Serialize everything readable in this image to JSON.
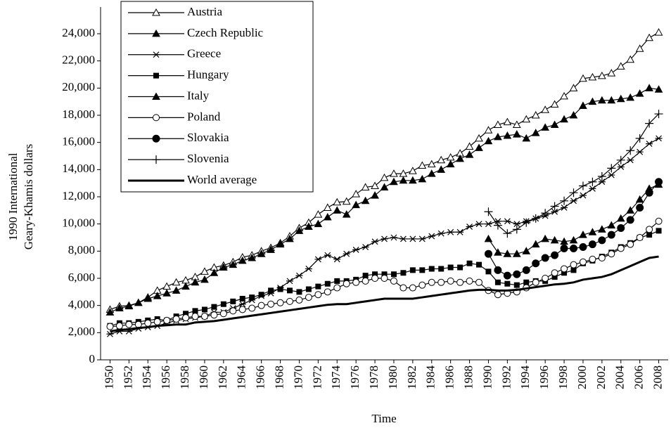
{
  "chart_data": {
    "type": "line",
    "x_label": "Time",
    "y_label": [
      "1990 International",
      "Geary-Khamis dollars"
    ],
    "x": [
      1950,
      1951,
      1952,
      1953,
      1954,
      1955,
      1956,
      1957,
      1958,
      1959,
      1960,
      1961,
      1962,
      1963,
      1964,
      1965,
      1966,
      1967,
      1968,
      1969,
      1970,
      1971,
      1972,
      1973,
      1974,
      1975,
      1976,
      1977,
      1978,
      1979,
      1980,
      1981,
      1982,
      1983,
      1984,
      1985,
      1986,
      1987,
      1988,
      1989,
      1990,
      1991,
      1992,
      1993,
      1994,
      1995,
      1996,
      1997,
      1998,
      1999,
      2000,
      2001,
      2002,
      2003,
      2004,
      2005,
      2006,
      2007,
      2008
    ],
    "xlim": [
      1949,
      2009
    ],
    "xticks": [
      1950,
      1952,
      1954,
      1956,
      1958,
      1960,
      1962,
      1964,
      1966,
      1968,
      1970,
      1972,
      1974,
      1976,
      1978,
      1980,
      1982,
      1984,
      1986,
      1988,
      1990,
      1992,
      1994,
      1996,
      1998,
      2000,
      2002,
      2004,
      2006,
      2008
    ],
    "ylim": [
      0,
      24000
    ],
    "yticks": [
      0,
      {
        "value": 2000,
        "label": "2,000"
      },
      {
        "value": 4000,
        "label": "4,000"
      },
      {
        "value": 6000,
        "label": "6,000"
      },
      {
        "value": 8000,
        "label": "8,000"
      },
      {
        "value": 10000,
        "label": "10,000"
      },
      {
        "value": 12000,
        "label": "12,000"
      },
      {
        "value": 14000,
        "label": "14,000"
      },
      {
        "value": 16000,
        "label": "16,000"
      },
      {
        "value": 18000,
        "label": "18,000"
      },
      {
        "value": 20000,
        "label": "20,000"
      },
      {
        "value": 22000,
        "label": "22,000"
      },
      {
        "value": 24000,
        "label": "24,000"
      }
    ],
    "legend": "upper left",
    "series": [
      {
        "name": "Austria",
        "color": "#000000",
        "marker": "triangle-open",
        "values": [
          3700,
          3950,
          4000,
          4200,
          4600,
          5100,
          5400,
          5700,
          5850,
          6100,
          6500,
          6800,
          6950,
          7200,
          7550,
          7700,
          8000,
          8250,
          8600,
          9100,
          9700,
          10100,
          10700,
          11200,
          11600,
          11650,
          12200,
          12700,
          12800,
          13400,
          13700,
          13700,
          13900,
          14300,
          14400,
          14700,
          14900,
          15200,
          15700,
          16300,
          16900,
          17300,
          17500,
          17300,
          17700,
          18000,
          18400,
          18800,
          19400,
          20000,
          20700,
          20800,
          20900,
          21100,
          21600,
          22100,
          22900,
          23700,
          24100
        ]
      },
      {
        "name": "Czech Republic",
        "color": "#000000",
        "marker": "triangle-filled",
        "values": [
          null,
          null,
          null,
          null,
          null,
          null,
          null,
          null,
          null,
          null,
          null,
          null,
          null,
          null,
          null,
          null,
          null,
          null,
          null,
          null,
          null,
          null,
          null,
          null,
          null,
          null,
          null,
          null,
          null,
          null,
          null,
          null,
          null,
          null,
          null,
          null,
          null,
          null,
          null,
          null,
          8900,
          7900,
          7800,
          7800,
          8000,
          8500,
          8900,
          8800,
          8700,
          8800,
          9200,
          9400,
          9600,
          9900,
          10400,
          11000,
          11800,
          12600,
          12900
        ]
      },
      {
        "name": "Greece",
        "color": "#000000",
        "marker": "asterisk",
        "values": [
          1900,
          2100,
          2100,
          2300,
          2400,
          2500,
          2700,
          2900,
          3000,
          3100,
          3200,
          3500,
          3500,
          3800,
          4100,
          4400,
          4700,
          4900,
          5300,
          5800,
          6200,
          6700,
          7400,
          7700,
          7400,
          7800,
          8100,
          8300,
          8700,
          8900,
          9000,
          8900,
          8900,
          8900,
          9100,
          9300,
          9400,
          9400,
          9800,
          10000,
          10000,
          10200,
          10200,
          10000,
          10200,
          10400,
          10600,
          10900,
          11200,
          11700,
          12100,
          12600,
          13100,
          13600,
          14200,
          14700,
          15300,
          15900,
          16300
        ]
      },
      {
        "name": "Hungary",
        "color": "#000000",
        "marker": "square",
        "values": [
          2500,
          2700,
          2700,
          2800,
          2900,
          3000,
          2900,
          3200,
          3400,
          3600,
          3700,
          3900,
          4100,
          4300,
          4500,
          4600,
          4800,
          5100,
          5200,
          5100,
          5000,
          5200,
          5400,
          5600,
          5800,
          5800,
          5900,
          6200,
          6300,
          6300,
          6300,
          6400,
          6600,
          6600,
          6700,
          6700,
          6800,
          6800,
          7100,
          7000,
          6500,
          5700,
          5600,
          5500,
          5700,
          5800,
          5800,
          6100,
          6400,
          6600,
          7100,
          7300,
          7600,
          7900,
          8300,
          8600,
          9000,
          9200,
          9500
        ]
      },
      {
        "name": "Italy",
        "color": "#000000",
        "marker": "triangle-filled",
        "values": [
          3500,
          3800,
          3950,
          4200,
          4500,
          4700,
          4900,
          5100,
          5400,
          5700,
          5900,
          6400,
          6800,
          7000,
          7300,
          7500,
          7800,
          8100,
          8500,
          8900,
          9500,
          9800,
          10000,
          10500,
          11000,
          10700,
          11400,
          11700,
          12100,
          12700,
          13100,
          13200,
          13200,
          13300,
          13700,
          14000,
          14400,
          14800,
          15100,
          15600,
          16100,
          16400,
          16500,
          16600,
          16300,
          16700,
          17100,
          17300,
          17700,
          18000,
          18700,
          19000,
          19100,
          19100,
          19200,
          19300,
          19600,
          20000,
          19900
        ]
      },
      {
        "name": "Poland",
        "color": "#000000",
        "marker": "circle-open",
        "values": [
          2450,
          2500,
          2600,
          2600,
          2700,
          2800,
          2900,
          3000,
          3100,
          3200,
          3200,
          3300,
          3400,
          3600,
          3700,
          3800,
          4000,
          4100,
          4200,
          4300,
          4400,
          4600,
          4800,
          5000,
          5300,
          5600,
          5700,
          5800,
          6000,
          6000,
          5800,
          5300,
          5300,
          5500,
          5700,
          5700,
          5800,
          5700,
          5800,
          5700,
          5100,
          4800,
          4900,
          5000,
          5300,
          5700,
          6000,
          6400,
          6700,
          7000,
          7200,
          7400,
          7500,
          7800,
          8200,
          8500,
          9000,
          9600,
          10200
        ]
      },
      {
        "name": "Slovakia",
        "color": "#000000",
        "marker": "circle-filled",
        "values": [
          null,
          null,
          null,
          null,
          null,
          null,
          null,
          null,
          null,
          null,
          null,
          null,
          null,
          null,
          null,
          null,
          null,
          null,
          null,
          null,
          null,
          null,
          null,
          null,
          null,
          null,
          null,
          null,
          null,
          null,
          null,
          null,
          null,
          null,
          null,
          null,
          null,
          null,
          null,
          null,
          7800,
          6600,
          6200,
          6300,
          6600,
          7100,
          7500,
          7700,
          8200,
          8200,
          8300,
          8500,
          8800,
          9200,
          9700,
          10300,
          11200,
          12300,
          13100
        ]
      },
      {
        "name": "Slovenia",
        "color": "#000000",
        "marker": "plus",
        "values": [
          null,
          null,
          null,
          null,
          null,
          null,
          null,
          null,
          null,
          null,
          null,
          null,
          null,
          null,
          null,
          null,
          null,
          null,
          null,
          null,
          null,
          null,
          null,
          null,
          null,
          null,
          null,
          null,
          null,
          null,
          null,
          null,
          null,
          null,
          null,
          null,
          null,
          null,
          null,
          null,
          10900,
          9900,
          9300,
          9600,
          10100,
          10400,
          10800,
          11300,
          11700,
          12300,
          12800,
          13100,
          13500,
          14100,
          14700,
          15400,
          16300,
          17400,
          18100
        ]
      },
      {
        "name": "World average",
        "color": "#000000",
        "marker": "none",
        "values": [
          2100,
          2200,
          2250,
          2350,
          2400,
          2500,
          2550,
          2600,
          2600,
          2750,
          2800,
          2850,
          2950,
          3050,
          3150,
          3250,
          3350,
          3450,
          3550,
          3650,
          3750,
          3850,
          3950,
          4050,
          4100,
          4100,
          4200,
          4300,
          4400,
          4500,
          4500,
          4500,
          4500,
          4600,
          4700,
          4800,
          4900,
          5000,
          5100,
          5150,
          5150,
          5100,
          5100,
          5150,
          5250,
          5350,
          5450,
          5550,
          5600,
          5700,
          5900,
          6000,
          6100,
          6300,
          6600,
          6900,
          7200,
          7500,
          7600
        ]
      }
    ]
  }
}
